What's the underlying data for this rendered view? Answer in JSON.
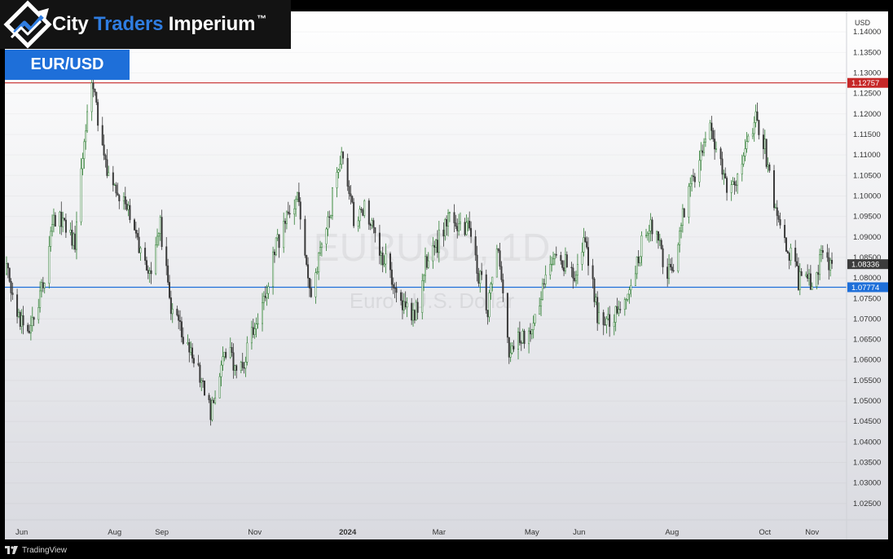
{
  "brand": {
    "name_part1": "City ",
    "name_part2": "Traders",
    "name_part3": " Imperium",
    "trademark": "™",
    "accent_color": "#2f7de1"
  },
  "pair_badge": "EUR/USD",
  "footer": {
    "platform": "TradingView"
  },
  "chart_data": {
    "type": "candlestick",
    "watermark": {
      "title": "EURUSD, 1D",
      "subtitle": "Euro / U.S. Dollar"
    },
    "currency_label": "USD",
    "ylim": [
      1.021,
      1.145
    ],
    "y_ticks": [
      "1.14000",
      "1.13500",
      "1.13000",
      "1.12500",
      "1.12000",
      "1.11500",
      "1.11000",
      "1.10500",
      "1.10000",
      "1.09500",
      "1.09000",
      "1.08500",
      "1.08000",
      "1.07500",
      "1.07000",
      "1.06500",
      "1.06000",
      "1.05500",
      "1.05000",
      "1.04500",
      "1.04000",
      "1.03500",
      "1.03000",
      "1.02500"
    ],
    "x_ticks": [
      {
        "label": "Jun",
        "date": "2023-06-01"
      },
      {
        "label": "Aug",
        "date": "2023-08-01"
      },
      {
        "label": "Sep",
        "date": "2023-09-01"
      },
      {
        "label": "Nov",
        "date": "2023-11-01"
      },
      {
        "label": "2024",
        "date": "2024-01-01",
        "bold": true
      },
      {
        "label": "Mar",
        "date": "2024-03-01"
      },
      {
        "label": "May",
        "date": "2024-05-01"
      },
      {
        "label": "Jun",
        "date": "2024-06-01"
      },
      {
        "label": "Aug",
        "date": "2024-08-01"
      },
      {
        "label": "Oct",
        "date": "2024-10-01"
      },
      {
        "label": "Nov",
        "date": "2024-11-01"
      }
    ],
    "x_range": [
      "2023-05-22",
      "2024-11-22"
    ],
    "horizontal_levels": [
      {
        "value": 1.12757,
        "label": "1.12757",
        "color": "#c62828"
      },
      {
        "value": 1.07774,
        "label": "1.07774",
        "color": "#1e6fd9"
      }
    ],
    "last_price": {
      "value": 1.08336,
      "label": "1.08336"
    },
    "up_color": "#2e7d32",
    "down_color": "#3a3a3a",
    "price_path": [
      {
        "date": "2023-05-22",
        "close": 1.081
      },
      {
        "date": "2023-05-31",
        "close": 1.0705
      },
      {
        "date": "2023-06-05",
        "close": 1.068
      },
      {
        "date": "2023-06-15",
        "close": 1.0785
      },
      {
        "date": "2023-06-22",
        "close": 1.0955
      },
      {
        "date": "2023-07-06",
        "close": 1.0885
      },
      {
        "date": "2023-07-14",
        "close": 1.1225
      },
      {
        "date": "2023-07-18",
        "close": 1.1265
      },
      {
        "date": "2023-07-28",
        "close": 1.104
      },
      {
        "date": "2023-08-10",
        "close": 1.097
      },
      {
        "date": "2023-08-25",
        "close": 1.079
      },
      {
        "date": "2023-08-31",
        "close": 1.0925
      },
      {
        "date": "2023-09-07",
        "close": 1.073
      },
      {
        "date": "2023-09-26",
        "close": 1.057
      },
      {
        "date": "2023-10-03",
        "close": 1.047
      },
      {
        "date": "2023-10-12",
        "close": 1.062
      },
      {
        "date": "2023-10-24",
        "close": 1.0575
      },
      {
        "date": "2023-11-01",
        "close": 1.069
      },
      {
        "date": "2023-11-06",
        "close": 1.0715
      },
      {
        "date": "2023-11-15",
        "close": 1.088
      },
      {
        "date": "2023-11-29",
        "close": 1.1005
      },
      {
        "date": "2023-12-08",
        "close": 1.0755
      },
      {
        "date": "2023-12-19",
        "close": 1.0935
      },
      {
        "date": "2023-12-28",
        "close": 1.1115
      },
      {
        "date": "2024-01-05",
        "close": 1.0945
      },
      {
        "date": "2024-01-12",
        "close": 1.0965
      },
      {
        "date": "2024-01-23",
        "close": 1.0865
      },
      {
        "date": "2024-02-05",
        "close": 1.0745
      },
      {
        "date": "2024-02-14",
        "close": 1.0705
      },
      {
        "date": "2024-02-21",
        "close": 1.083
      },
      {
        "date": "2024-03-08",
        "close": 1.0945
      },
      {
        "date": "2024-03-20",
        "close": 1.0915
      },
      {
        "date": "2024-04-02",
        "close": 1.0725
      },
      {
        "date": "2024-04-09",
        "close": 1.0865
      },
      {
        "date": "2024-04-16",
        "close": 1.0625
      },
      {
        "date": "2024-04-22",
        "close": 1.0645
      },
      {
        "date": "2024-05-01",
        "close": 1.0675
      },
      {
        "date": "2024-05-16",
        "close": 1.0875
      },
      {
        "date": "2024-05-29",
        "close": 1.0805
      },
      {
        "date": "2024-06-04",
        "close": 1.0895
      },
      {
        "date": "2024-06-14",
        "close": 1.0695
      },
      {
        "date": "2024-06-28",
        "close": 1.0715
      },
      {
        "date": "2024-07-17",
        "close": 1.0935
      },
      {
        "date": "2024-08-01",
        "close": 1.0795
      },
      {
        "date": "2024-08-07",
        "close": 1.0935
      },
      {
        "date": "2024-08-26",
        "close": 1.1185
      },
      {
        "date": "2024-09-04",
        "close": 1.1035
      },
      {
        "date": "2024-09-11",
        "close": 1.1025
      },
      {
        "date": "2024-09-25",
        "close": 1.1195
      },
      {
        "date": "2024-09-30",
        "close": 1.1135
      },
      {
        "date": "2024-10-10",
        "close": 1.0935
      },
      {
        "date": "2024-10-23",
        "close": 1.0795
      },
      {
        "date": "2024-11-01",
        "close": 1.0785
      },
      {
        "date": "2024-11-07",
        "close": 1.0855
      },
      {
        "date": "2024-11-14",
        "close": 1.0835
      }
    ]
  }
}
